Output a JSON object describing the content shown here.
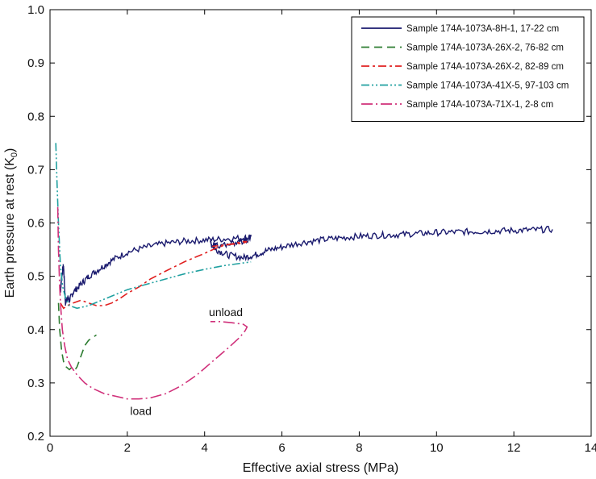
{
  "chart_data": {
    "type": "line",
    "xlabel": "Effective axial stress (MPa)",
    "ylabel": "Earth pressure at rest (K",
    "ylabel_subscript": "0",
    "ylabel_close": ")",
    "xlim": [
      0,
      14
    ],
    "ylim": [
      0.2,
      1.0
    ],
    "x_ticks": [
      0,
      2,
      4,
      6,
      8,
      10,
      12,
      14
    ],
    "y_ticks": [
      0.2,
      0.3,
      0.4,
      0.5,
      0.6,
      0.7,
      0.8,
      0.9,
      1.0
    ],
    "x_tick_labels": [
      "0",
      "2",
      "4",
      "6",
      "8",
      "10",
      "12",
      "14"
    ],
    "y_tick_labels": [
      "0.2",
      "0.3",
      "0.4",
      "0.5",
      "0.6",
      "0.7",
      "0.8",
      "0.9",
      "1.0"
    ],
    "grid": false,
    "legend_position": "top-right",
    "annotations": [
      {
        "text": "unload",
        "x": 4.55,
        "y": 0.425
      },
      {
        "text": "load",
        "x": 2.35,
        "y": 0.24
      }
    ],
    "series": [
      {
        "name": "Sample 174A-1073A-8H-1, 17-22 cm",
        "color": "#1a1a6e",
        "dash": "solid",
        "noisy": true,
        "x": [
          0.27,
          0.3,
          0.35,
          0.4,
          0.45,
          0.5,
          0.6,
          0.8,
          1.0,
          1.3,
          1.6,
          2.0,
          2.5,
          3.0,
          3.5,
          4.0,
          4.5,
          5.0,
          5.2,
          5.0,
          4.6,
          4.3,
          4.15,
          4.3,
          4.6,
          5.0,
          5.3,
          5.6,
          6.0,
          6.5,
          7.0,
          7.5,
          8.0,
          8.5,
          9.0,
          9.5,
          10.0,
          10.5,
          11.0,
          11.5,
          12.0,
          12.5,
          13.0
        ],
        "y": [
          0.47,
          0.5,
          0.52,
          0.45,
          0.46,
          0.455,
          0.47,
          0.485,
          0.5,
          0.515,
          0.53,
          0.545,
          0.555,
          0.562,
          0.566,
          0.568,
          0.57,
          0.572,
          0.572,
          0.565,
          0.56,
          0.557,
          0.562,
          0.55,
          0.54,
          0.535,
          0.54,
          0.548,
          0.555,
          0.563,
          0.568,
          0.572,
          0.575,
          0.577,
          0.578,
          0.58,
          0.582,
          0.583,
          0.584,
          0.585,
          0.586,
          0.587,
          0.588
        ]
      },
      {
        "name": "Sample 174A-1073A-26X-2, 76-82 cm",
        "color": "#2e7d32",
        "dash": "10,6",
        "noisy": false,
        "x": [
          0.22,
          0.25,
          0.3,
          0.35,
          0.42,
          0.5,
          0.58,
          0.65,
          0.7,
          0.8,
          0.9,
          1.0,
          1.1,
          1.2
        ],
        "y": [
          0.45,
          0.4,
          0.36,
          0.34,
          0.33,
          0.325,
          0.33,
          0.325,
          0.33,
          0.35,
          0.37,
          0.38,
          0.385,
          0.39
        ]
      },
      {
        "name": "Sample 174A-1073A-26X-2, 82-89 cm",
        "color": "#e02020",
        "dash": "10,4,3,4",
        "noisy": false,
        "x": [
          0.27,
          0.35,
          0.45,
          0.6,
          0.8,
          1.0,
          1.2,
          1.4,
          1.6,
          1.8,
          2.0,
          2.3,
          2.6,
          3.0,
          3.5,
          4.0,
          4.3,
          4.5,
          4.8,
          5.0,
          5.1,
          5.0,
          4.7,
          4.4,
          4.2
        ],
        "y": [
          0.45,
          0.44,
          0.445,
          0.45,
          0.455,
          0.45,
          0.445,
          0.445,
          0.45,
          0.458,
          0.468,
          0.48,
          0.495,
          0.51,
          0.528,
          0.543,
          0.553,
          0.558,
          0.562,
          0.565,
          0.565,
          0.562,
          0.56,
          0.558,
          0.556
        ]
      },
      {
        "name": "Sample 174A-1073A-41X-5, 97-103 cm",
        "color": "#20a0a0",
        "dash": "10,3,2,3,2,3",
        "noisy": false,
        "x": [
          0.15,
          0.18,
          0.22,
          0.27,
          0.33,
          0.4,
          0.5,
          0.7,
          1.0,
          1.5,
          2.0,
          2.5,
          3.0,
          3.5,
          4.0,
          4.5,
          5.0,
          5.2
        ],
        "y": [
          0.75,
          0.68,
          0.6,
          0.52,
          0.48,
          0.46,
          0.445,
          0.44,
          0.445,
          0.46,
          0.475,
          0.485,
          0.495,
          0.505,
          0.513,
          0.52,
          0.525,
          0.527
        ]
      },
      {
        "name": "Sample 174A-1073A-71X-1, 2-8 cm",
        "color": "#d0307a",
        "dash": "14,4,2,4",
        "noisy": false,
        "x": [
          0.2,
          0.22,
          0.25,
          0.28,
          0.32,
          0.38,
          0.45,
          0.55,
          0.7,
          0.9,
          1.1,
          1.4,
          1.7,
          2.0,
          2.3,
          2.6,
          3.0,
          3.4,
          3.8,
          4.2,
          4.6,
          4.9,
          5.05,
          5.1,
          5.0,
          4.7,
          4.4,
          4.15
        ],
        "y": [
          0.63,
          0.55,
          0.48,
          0.44,
          0.4,
          0.37,
          0.345,
          0.33,
          0.315,
          0.3,
          0.29,
          0.28,
          0.275,
          0.27,
          0.27,
          0.272,
          0.28,
          0.295,
          0.315,
          0.34,
          0.365,
          0.385,
          0.398,
          0.405,
          0.41,
          0.413,
          0.415,
          0.415
        ]
      }
    ]
  }
}
